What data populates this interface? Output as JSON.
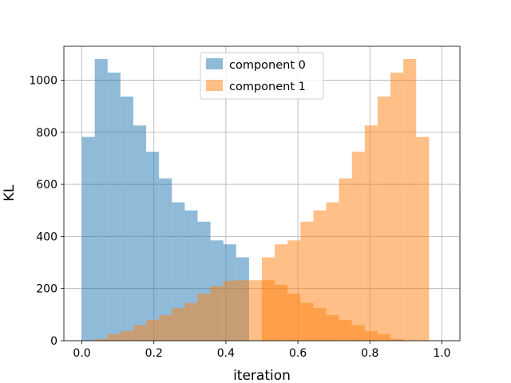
{
  "chart_data": {
    "type": "bar",
    "xlabel": "iteration",
    "ylabel": "KL",
    "xlim": [
      -0.05,
      1.05
    ],
    "ylim": [
      0,
      1130
    ],
    "xticks": [
      "0.0",
      "0.2",
      "0.4",
      "0.6",
      "0.8",
      "1.0"
    ],
    "yticks": [
      "0",
      "200",
      "400",
      "600",
      "800",
      "1000"
    ],
    "grid": true,
    "legend_position": "upper center",
    "bin_edges": [
      0.0,
      0.0357,
      0.0714,
      0.1071,
      0.1429,
      0.1786,
      0.2143,
      0.25,
      0.2857,
      0.3214,
      0.3571,
      0.3929,
      0.4286,
      0.4643,
      0.5,
      0.5357,
      0.5714,
      0.6071,
      0.6429,
      0.6786,
      0.7143,
      0.75,
      0.7857,
      0.8214,
      0.8571,
      0.8929,
      0.9286,
      0.9643,
      1.0
    ],
    "series": [
      {
        "name": "component 0",
        "color": "#1f77b4",
        "opacity": 0.5,
        "values": [
          782,
          1081,
          1029,
          937,
          826,
          725,
          623,
          531,
          500,
          457,
          385,
          370,
          320,
          0,
          0,
          0,
          0,
          0,
          0,
          0,
          0,
          0,
          0,
          0,
          0,
          0,
          0,
          0
        ]
      },
      {
        "name": "component 1",
        "color": "#ff7f0e",
        "opacity": 0.5,
        "values": [
          0,
          7,
          25,
          37,
          60,
          80,
          98,
          125,
          145,
          180,
          210,
          230,
          232,
          232,
          232,
          215,
          180,
          145,
          125,
          98,
          80,
          60,
          37,
          25,
          7,
          0,
          0,
          0
        ]
      },
      {
        "name": "",
        "color": "#ff7f0e",
        "opacity": 0.5,
        "values": [
          0,
          0,
          0,
          0,
          0,
          0,
          0,
          0,
          0,
          0,
          0,
          0,
          0,
          0,
          320,
          370,
          385,
          457,
          500,
          531,
          623,
          725,
          826,
          937,
          1029,
          1081,
          782,
          0
        ]
      }
    ]
  }
}
